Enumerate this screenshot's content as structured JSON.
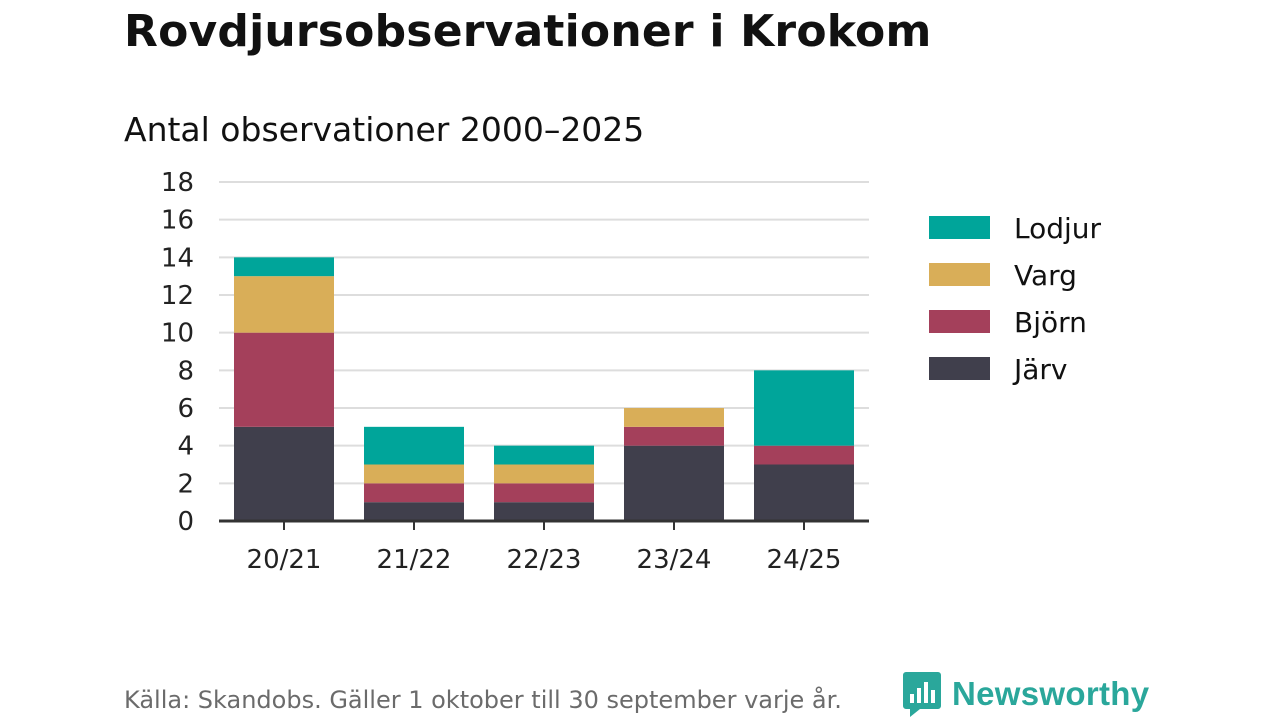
{
  "title": "Rovdjursobservationer i Krokom",
  "subtitle": "Antal observationer 2000–2025",
  "source": "Källa: Skandobs. Gäller 1 oktober till 30 september varje år.",
  "brand": {
    "name": "Newsworthy",
    "color": "#2aa79b"
  },
  "chart_data": {
    "type": "bar",
    "stacked": true,
    "title": "Antal observationer 2000–2025",
    "categories": [
      "20/21",
      "21/22",
      "22/23",
      "23/24",
      "24/25"
    ],
    "series": [
      {
        "name": "Järv",
        "color": "#403f4c",
        "values": [
          5,
          1,
          1,
          4,
          3
        ]
      },
      {
        "name": "Björn",
        "color": "#a4405b",
        "values": [
          5,
          1,
          1,
          1,
          1
        ]
      },
      {
        "name": "Varg",
        "color": "#d9ae58",
        "values": [
          3,
          1,
          1,
          1,
          0
        ]
      },
      {
        "name": "Lodjur",
        "color": "#00a59a",
        "values": [
          1,
          2,
          1,
          0,
          4
        ]
      }
    ],
    "legend_order": [
      "Lodjur",
      "Varg",
      "Björn",
      "Järv"
    ],
    "ylim": [
      0,
      18
    ],
    "yticks": [
      0,
      2,
      4,
      6,
      8,
      10,
      12,
      14,
      16,
      18
    ],
    "grid": true,
    "legend_position": "right",
    "xlabel": "",
    "ylabel": ""
  }
}
